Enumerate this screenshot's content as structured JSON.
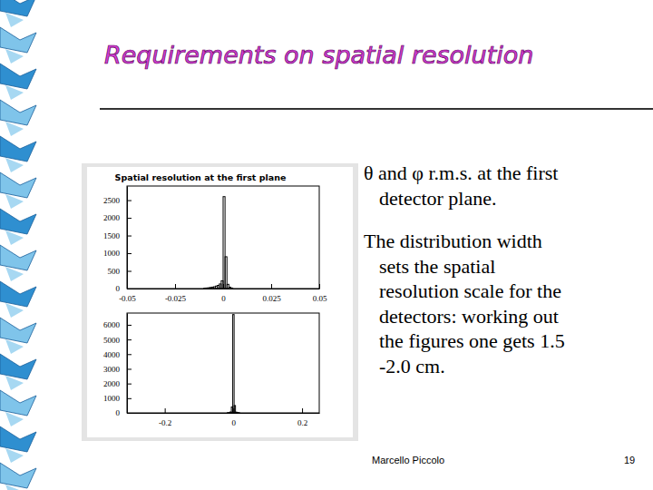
{
  "slide": {
    "title": "Requirements on spatial resolution",
    "paragraphs": [
      [
        "θ and φ  r.m.s. at the first",
        "detector plane."
      ],
      [
        "The distribution width",
        "sets the spatial",
        "resolution scale  for the",
        "detectors: working out",
        "the figures one gets 1.5",
        "-2.0 cm."
      ]
    ],
    "footer": "Marcello Piccolo",
    "page": "19"
  },
  "chart_data": [
    {
      "type": "histogram",
      "title": "Spatial resolution at the first plane",
      "color": "#000000",
      "bins": [
        -0.01,
        -0.009,
        -0.008,
        -0.007,
        -0.006,
        -0.005,
        -0.004,
        -0.003,
        -0.002,
        -0.001,
        0,
        0.001,
        0.002,
        0.003,
        0.004,
        0.005
      ],
      "counts": [
        10,
        15,
        20,
        30,
        40,
        50,
        70,
        90,
        130,
        220,
        2600,
        900,
        120,
        40,
        15
      ],
      "xlim": [
        -0.05,
        0.05
      ],
      "xticks": [
        -0.05,
        -0.025,
        0,
        0.025,
        0.05
      ],
      "ylim": [
        0,
        2900
      ],
      "yticks": [
        0,
        500,
        1000,
        1500,
        2000,
        2500
      ]
    },
    {
      "type": "histogram",
      "color": "#000000",
      "bins": [
        -0.018,
        -0.014,
        -0.01,
        -0.006,
        -0.002,
        0.002,
        0.006,
        0.01,
        0.014,
        0.018
      ],
      "counts": [
        10,
        20,
        60,
        400,
        6700,
        500,
        50,
        20,
        10
      ],
      "xlim": [
        -0.31,
        0.25
      ],
      "xticks": [
        -0.2,
        0,
        0.2
      ],
      "ylim": [
        0,
        6800
      ],
      "yticks": [
        0,
        1000,
        2000,
        3000,
        4000,
        5000,
        6000
      ]
    }
  ]
}
